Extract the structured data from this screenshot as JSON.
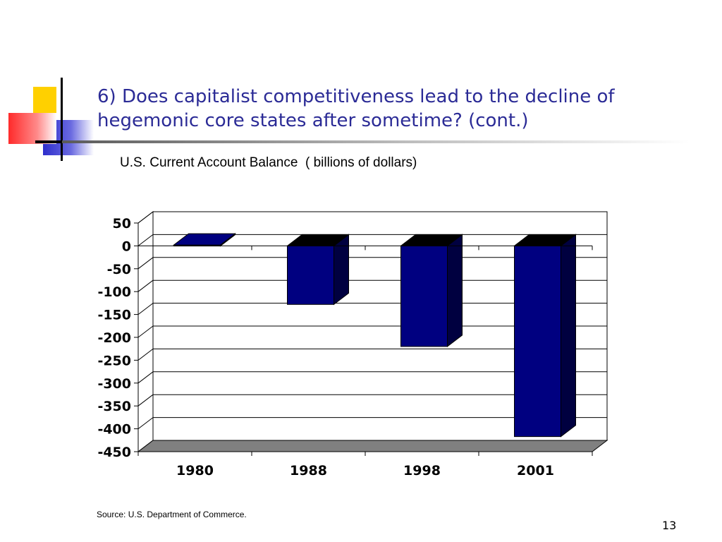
{
  "slide": {
    "title": "6)  Does capitalist competitiveness lead to the decline of hegemonic core states after sometime? (cont.)",
    "subtitle": "U.S. Current Account Balance  ( billions of dollars)",
    "source": "Source: U.S. Department of Commerce.",
    "page_number": "13"
  },
  "colors": {
    "title": "#2b2b96",
    "bar_front": "#000080",
    "bar_side": "#000040",
    "bar_top": "#000000",
    "floor": "#808080",
    "deco_yellow": "#ffd000",
    "deco_blue": "#3333cc",
    "deco_red": "#ff3333"
  },
  "chart_data": {
    "type": "bar",
    "categories": [
      "1980",
      "1988",
      "1998",
      "2001"
    ],
    "values": [
      2,
      -128,
      -220,
      -417
    ],
    "ylim": [
      -450,
      50
    ],
    "yticks": [
      "50",
      "0",
      "-50",
      "-100",
      "-150",
      "-200",
      "-250",
      "-300",
      "-350",
      "-400",
      "-450"
    ],
    "title": "",
    "xlabel": "",
    "ylabel": "",
    "grid": true,
    "legend": "none",
    "style": "3d"
  }
}
